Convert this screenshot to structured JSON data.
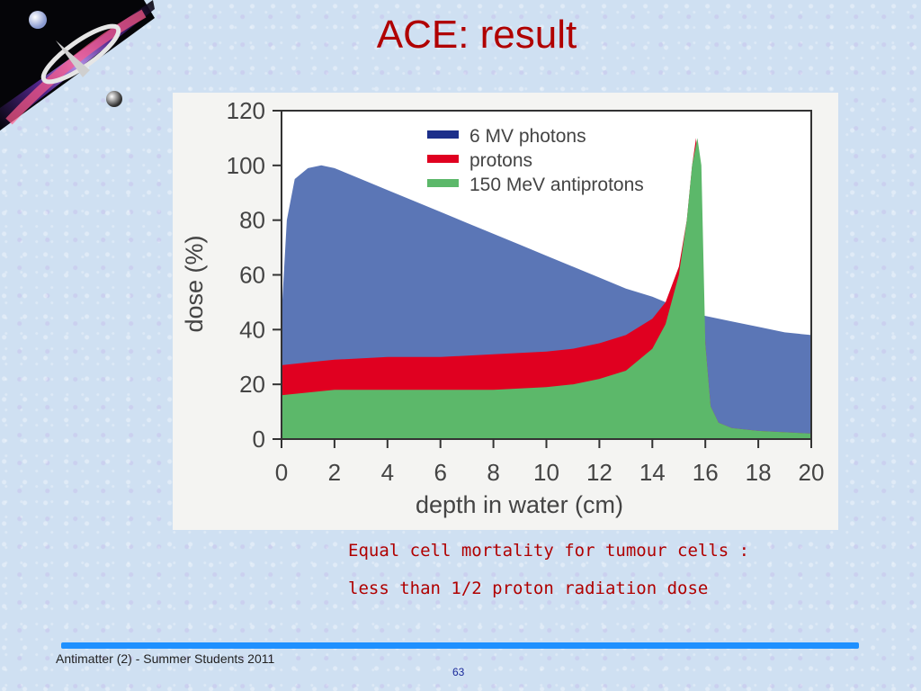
{
  "slide": {
    "title": "ACE: result",
    "captions": [
      "Equal cell mortality for tumour cells :",
      "less than 1/2 proton radiation dose"
    ],
    "footer": "Antimatter (2) - Summer Students 2011",
    "page_number": "63"
  },
  "colors": {
    "title": "#b00000",
    "caption": "#b00000",
    "footer_line": "#1e90ff",
    "photons": "#5b76b6",
    "protons": "#e00020",
    "antiprotons": "#5cb86a"
  },
  "chart_data": {
    "type": "area",
    "xlabel": "depth in water (cm)",
    "ylabel": "dose (%)",
    "xlim": [
      0,
      20
    ],
    "ylim": [
      0,
      120
    ],
    "xticks": [
      0,
      2,
      4,
      6,
      8,
      10,
      12,
      14,
      16,
      18,
      20
    ],
    "yticks": [
      0,
      20,
      40,
      60,
      80,
      100,
      120
    ],
    "grid": false,
    "legend_position": "top-right",
    "series": [
      {
        "name": "6 MV photons",
        "x": [
          0,
          0.2,
          0.5,
          1,
          1.5,
          2,
          3,
          4,
          5,
          6,
          7,
          8,
          9,
          10,
          11,
          12,
          13,
          14,
          15,
          16,
          17,
          18,
          19,
          20
        ],
        "y": [
          45,
          80,
          95,
          99,
          100,
          99,
          95,
          91,
          87,
          83,
          79,
          75,
          71,
          67,
          63,
          59,
          55,
          52,
          48,
          45,
          43,
          41,
          39,
          38
        ]
      },
      {
        "name": "protons",
        "x": [
          0,
          1,
          2,
          4,
          6,
          8,
          10,
          11,
          12,
          13,
          14,
          14.5,
          15,
          15.3,
          15.5,
          15.65,
          15.8,
          16,
          16.2,
          16.5,
          17,
          18,
          19,
          20
        ],
        "y": [
          27,
          28,
          29,
          30,
          30,
          31,
          32,
          33,
          35,
          38,
          44,
          50,
          63,
          80,
          100,
          110,
          90,
          35,
          12,
          6,
          4,
          3,
          2.5,
          2
        ]
      },
      {
        "name": "150 MeV antiprotons",
        "x": [
          0,
          1,
          2,
          4,
          6,
          8,
          10,
          11,
          12,
          13,
          14,
          14.5,
          15,
          15.3,
          15.5,
          15.7,
          15.85,
          16,
          16.2,
          16.5,
          17,
          18,
          19,
          20
        ],
        "y": [
          16,
          17,
          18,
          18,
          18,
          18,
          19,
          20,
          22,
          25,
          33,
          42,
          60,
          80,
          100,
          110,
          100,
          35,
          12,
          6,
          4,
          3,
          2.5,
          2
        ]
      }
    ]
  }
}
